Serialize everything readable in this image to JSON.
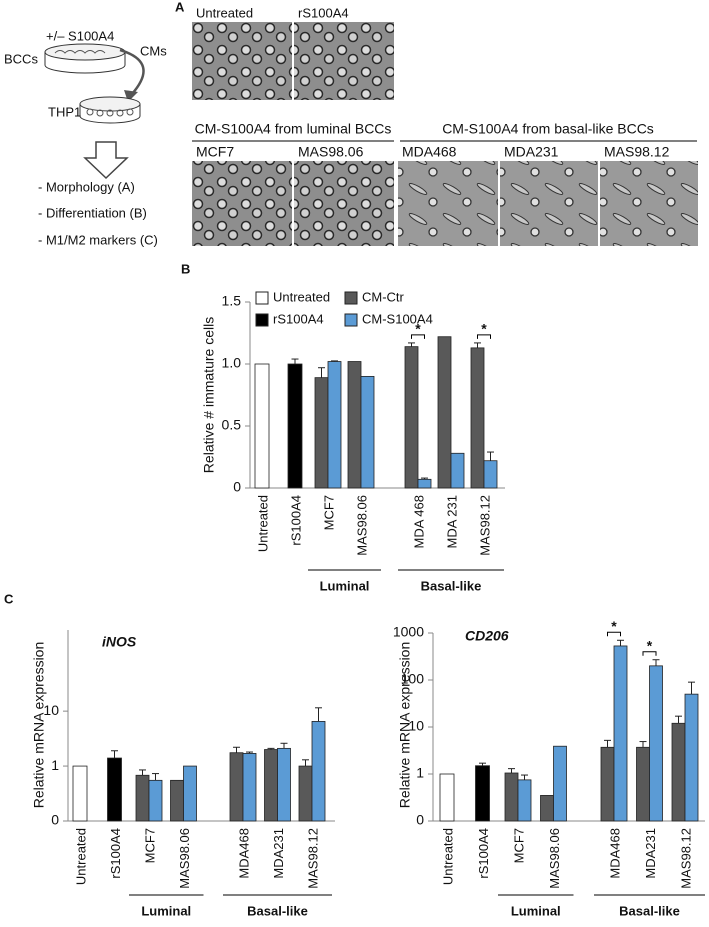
{
  "diagram": {
    "treatment": "+/– S100A4",
    "source": "BCCs",
    "media": "CMs",
    "target": "THP1",
    "readouts": [
      "- Morphology (A)",
      "- Differentiation (B)",
      "- M1/M2 markers (C)"
    ]
  },
  "panel_a": {
    "letter": "A",
    "controls": [
      "Untreated",
      "rS100A4"
    ],
    "groups": [
      {
        "label": "CM-S100A4 from luminal BCCs",
        "lines": [
          "MCF7",
          "MAS98.06"
        ]
      },
      {
        "label": "CM-S100A4 from basal-like BCCs",
        "lines": [
          "MDA468",
          "MDA231",
          "MAS98.12"
        ]
      }
    ]
  },
  "chart_data": [
    {
      "type": "bar",
      "panel": "B",
      "ylabel": "Relative # immature cells",
      "category_groups": [
        {
          "categories": [
            "Untreated",
            "rS100A4"
          ]
        },
        {
          "label": "Luminal",
          "categories": [
            "MCF7",
            "MAS98.06"
          ]
        },
        {
          "label": "Basal-like",
          "categories": [
            "MDA 468",
            "MDA 231",
            "MAS98.12"
          ]
        }
      ],
      "series": [
        {
          "name": "Untreated",
          "color": "#ffffff",
          "values": [
            1,
            null,
            null,
            null,
            null,
            null,
            null
          ],
          "errors": [
            null,
            null,
            null,
            null,
            null,
            null,
            null
          ]
        },
        {
          "name": "rS100A4",
          "color": "#000000",
          "values": [
            null,
            1.0,
            null,
            null,
            null,
            null,
            null
          ],
          "errors": [
            null,
            0.04,
            null,
            null,
            null,
            null,
            null
          ]
        },
        {
          "name": "CM-Ctr",
          "color": "#595959",
          "values": [
            null,
            null,
            0.89,
            1.02,
            1.14,
            1.22,
            1.13
          ],
          "errors": [
            null,
            null,
            0.08,
            null,
            0.03,
            null,
            0.04
          ]
        },
        {
          "name": "CM-S100A4",
          "color": "#5b9bd5",
          "values": [
            null,
            null,
            1.02,
            0.9,
            0.07,
            0.28,
            0.22
          ],
          "errors": [
            null,
            null,
            0.005,
            null,
            0.01,
            null,
            0.07
          ]
        }
      ],
      "significance": [
        null,
        null,
        null,
        null,
        "*",
        null,
        "*"
      ],
      "ylim": [
        0,
        1.5
      ],
      "yticks": [
        0,
        0.5,
        {
          "value": 1,
          "label": "1.0"
        },
        1.5
      ],
      "log_scale": false
    },
    {
      "type": "bar",
      "panel": "C",
      "title": "iNOS",
      "ylabel": "Relative mRNA expression",
      "category_groups": [
        {
          "categories": [
            "Untreated",
            "rS100A4"
          ]
        },
        {
          "label": "Luminal",
          "categories": [
            "MCF7",
            "MAS98.06"
          ]
        },
        {
          "label": "Basal-like",
          "categories": [
            "MDA468",
            "MDA231",
            "MAS98.12"
          ]
        }
      ],
      "series": [
        {
          "color": "#ffffff",
          "values": [
            1,
            null,
            null,
            null,
            null,
            null,
            null
          ],
          "errors": [
            null,
            null,
            null,
            null,
            null,
            null,
            null
          ]
        },
        {
          "color": "#000000",
          "values": [
            null,
            1.4,
            null,
            null,
            null,
            null,
            null
          ],
          "errors": [
            null,
            0.5,
            null,
            null,
            null,
            null,
            null
          ]
        },
        {
          "color": "#595959",
          "values": [
            null,
            null,
            0.68,
            0.55,
            1.75,
            2.0,
            1.0
          ],
          "errors": [
            null,
            null,
            0.17,
            null,
            0.45,
            0.1,
            0.3
          ]
        },
        {
          "color": "#5b9bd5",
          "values": [
            null,
            null,
            0.55,
            1.0,
            1.7,
            2.1,
            6.5
          ],
          "errors": [
            null,
            null,
            0.18,
            null,
            0.1,
            0.5,
            5
          ]
        }
      ],
      "significance": [
        null,
        null,
        null,
        null,
        null,
        null,
        null
      ],
      "ylim": [
        0.1,
        300
      ],
      "yticks": [
        {
          "value": 0.1,
          "label": "0"
        },
        1,
        10
      ],
      "log_scale": true
    },
    {
      "type": "bar",
      "title": "CD206",
      "ylabel": "Relative mRNA expression",
      "category_groups": [
        {
          "categories": [
            "Untreated",
            "rS100A4"
          ]
        },
        {
          "label": "Luminal",
          "categories": [
            "MCF7",
            "MAS98.06"
          ]
        },
        {
          "label": "Basal-like",
          "categories": [
            "MDA468",
            "MDA231",
            "MAS98.12"
          ]
        }
      ],
      "series": [
        {
          "color": "#ffffff",
          "values": [
            1,
            null,
            null,
            null,
            null,
            null,
            null
          ],
          "errors": [
            null,
            null,
            null,
            null,
            null,
            null,
            null
          ]
        },
        {
          "color": "#000000",
          "values": [
            null,
            1.5,
            null,
            null,
            null,
            null,
            null
          ],
          "errors": [
            null,
            0.2,
            null,
            null,
            null,
            null,
            null
          ]
        },
        {
          "color": "#595959",
          "values": [
            null,
            null,
            1.05,
            0.35,
            3.7,
            3.7,
            12
          ],
          "errors": [
            null,
            null,
            0.25,
            null,
            1.5,
            1.2,
            5
          ]
        },
        {
          "color": "#5b9bd5",
          "values": [
            null,
            null,
            0.75,
            3.9,
            530,
            200,
            50
          ],
          "errors": [
            null,
            null,
            0.2,
            null,
            170,
            70,
            40
          ]
        }
      ],
      "significance": [
        null,
        null,
        null,
        null,
        "*",
        "*",
        null
      ],
      "ylim": [
        0.1,
        1000
      ],
      "yticks": [
        {
          "value": 0.1,
          "label": "0"
        },
        1,
        10,
        100,
        1000
      ],
      "log_scale": true
    }
  ]
}
